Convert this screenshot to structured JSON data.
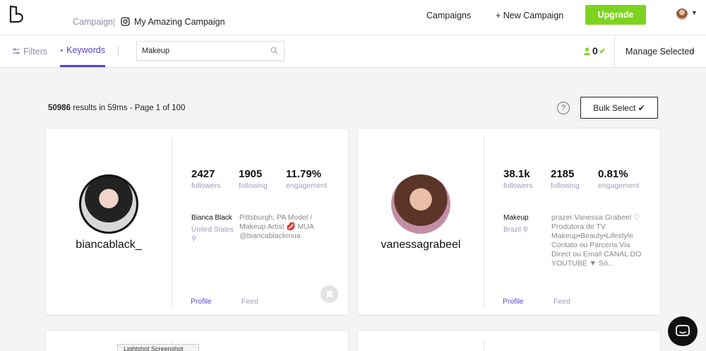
{
  "header": {
    "breadcrumb_root": "Campaign",
    "breadcrumb_sep": "|",
    "campaign_name": "My Amazing Campaign",
    "nav_campaigns": "Campaigns",
    "nav_new_campaign": "+ New Campaign",
    "upgrade_label": "Upgrade",
    "accent_green": "#7ed321",
    "accent_purple": "#5b3fd6"
  },
  "toolbar": {
    "tab_filters": "Filters",
    "tab_keywords": "Keywords",
    "search_value": "Makeup",
    "selected_count": "0",
    "manage_selected": "Manage Selected"
  },
  "results": {
    "count": "50986",
    "summary": "results in 59ms - Page 1 of 100",
    "help": "?",
    "bulk_select": "Bulk Select ✔"
  },
  "cards": [
    {
      "username": "biancablack_",
      "followers": "2427",
      "followers_label": "followers",
      "following": "1905",
      "following_label": "following",
      "engagement": "11.79%",
      "engagement_label": "engagement",
      "name": "Bianca Black",
      "location": "United States",
      "bio": "Pittsburgh, PA Model / Makeup Artist 💋 MUA @biancablackmua",
      "profile_link": "Profile",
      "feed_link": "Feed"
    },
    {
      "username": "vanessagrabeel",
      "followers": "38.1k",
      "followers_label": "followers",
      "following": "2185",
      "following_label": "following",
      "engagement": "0.81%",
      "engagement_label": "engagement",
      "name": "Makeup",
      "location": "Brazil",
      "bio": "prazer Vanessa Grabeel ♡ Produtora de TV Makeup•Beauty•Lifestyle Contato ou Parceria Via Direct ou Email CANAL DO YOUTUBE ▼ Só...",
      "profile_link": "Profile",
      "feed_link": "Feed"
    }
  ],
  "tooltip": "Lightshot Screenshot"
}
